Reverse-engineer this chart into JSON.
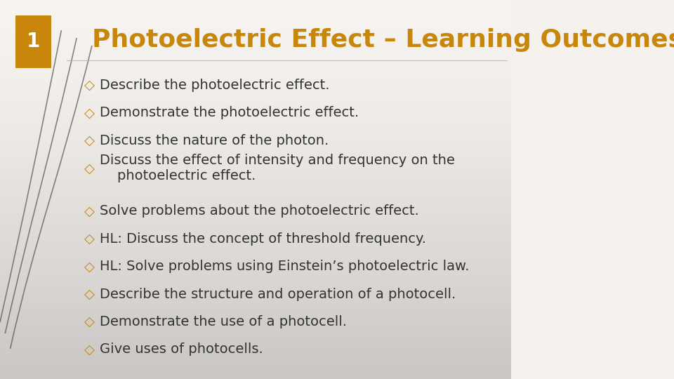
{
  "title": "Photoelectric Effect – Learning Outcomes",
  "title_color": "#C8860A",
  "slide_number": "1",
  "slide_number_bg": "#C8860A",
  "slide_number_text_color": "#FFFFFF",
  "background_color_top": "#F5F2EE",
  "background_color_bottom": "#D8CFC8",
  "bullet_items": [
    "Describe the photoelectric effect.",
    "Demonstrate the photoelectric effect.",
    "Discuss the nature of the photon.",
    "Discuss the effect of intensity and frequency on the\n    photoelectric effect.",
    "Solve problems about the photoelectric effect.",
    "HL: Discuss the concept of threshold frequency.",
    "HL: Solve problems using Einstein’s photoelectric law.",
    "Describe the structure and operation of a photocell.",
    "Demonstrate the use of a photocell.",
    "Give uses of photocells."
  ],
  "bullet_color": "#C8860A",
  "text_color": "#333333",
  "bullet_font_size": 14,
  "title_font_size": 26,
  "decorative_lines_color": "#555555"
}
